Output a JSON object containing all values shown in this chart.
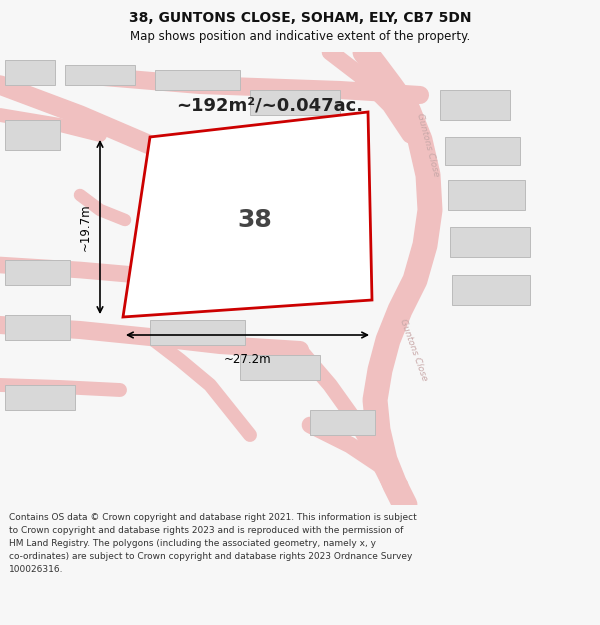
{
  "title_line1": "38, GUNTONS CLOSE, SOHAM, ELY, CB7 5DN",
  "title_line2": "Map shows position and indicative extent of the property.",
  "area_text": "~192m²/~0.047ac.",
  "number_label": "38",
  "dim_width": "~27.2m",
  "dim_height": "~19.7m",
  "footer_text": "Contains OS data © Crown copyright and database right 2021. This information is subject\nto Crown copyright and database rights 2023 and is reproduced with the permission of\nHM Land Registry. The polygons (including the associated geometry, namely x, y\nco-ordinates) are subject to Crown copyright and database rights 2023 Ordnance Survey\n100026316.",
  "bg_color": "#f7f7f7",
  "map_bg": "#efefef",
  "road_color": "#f0c0c0",
  "building_color": "#d8d8d8",
  "building_edge": "#bbbbbb",
  "plot_fill": "#ffffff",
  "plot_edge": "#cc0000",
  "street_label_color": "#c8a8a8",
  "title_color": "#111111",
  "footer_color": "#333333",
  "title_fontsize": 10,
  "subtitle_fontsize": 8.5,
  "area_fontsize": 13,
  "number_fontsize": 18,
  "dim_fontsize": 8.5,
  "footer_fontsize": 6.5
}
